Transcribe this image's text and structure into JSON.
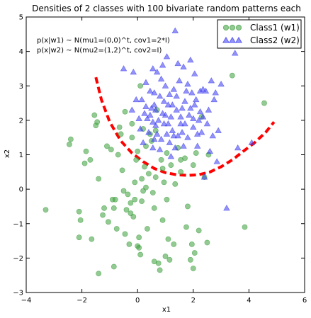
{
  "chart_data": {
    "type": "scatter",
    "title": "Densities of 2 classes with 100 bivariate random patterns each",
    "xlabel": "x1",
    "ylabel": "x2",
    "xlim": [
      -4,
      6
    ],
    "ylim": [
      -3,
      5
    ],
    "xticks": [
      -4,
      -2,
      0,
      2,
      4,
      6
    ],
    "yticks": [
      -3,
      -2,
      -1,
      0,
      1,
      2,
      3,
      4,
      5
    ],
    "grid": false,
    "legend_position": "top-right",
    "annotations": [
      "p(x|w1) ~ N(mu1=(0,0)^t, cov1=2*I)",
      "p(x|w2) ~ N(mu2=(1,2)^t, cov2=I)"
    ],
    "series": [
      {
        "name": "Class1 (w1)",
        "marker": "circle",
        "color": "#3a9e3a",
        "points": [
          [
            -3.3,
            -0.6
          ],
          [
            -2.45,
            1.3
          ],
          [
            -2.4,
            1.45
          ],
          [
            -2.1,
            -0.65
          ],
          [
            -2.1,
            -1.4
          ],
          [
            -2.05,
            -0.9
          ],
          [
            -1.9,
            0.75
          ],
          [
            -1.85,
            1.1
          ],
          [
            -1.7,
            0.85
          ],
          [
            -1.65,
            -1.45
          ],
          [
            -1.55,
            2.15
          ],
          [
            -1.5,
            1.85
          ],
          [
            -1.45,
            1.95
          ],
          [
            -1.4,
            -2.45
          ],
          [
            -1.4,
            0.3
          ],
          [
            -1.25,
            -0.75
          ],
          [
            -1.2,
            -0.55
          ],
          [
            -1.1,
            1.25
          ],
          [
            -1.05,
            -0.95
          ],
          [
            -0.95,
            1.15
          ],
          [
            -0.9,
            -0.3
          ],
          [
            -0.85,
            -2.25
          ],
          [
            -0.85,
            -0.55
          ],
          [
            -0.8,
            -0.3
          ],
          [
            -0.75,
            -1.15
          ],
          [
            -0.7,
            1.0
          ],
          [
            -0.65,
            1.8
          ],
          [
            -0.55,
            0.55
          ],
          [
            -0.5,
            -0.05
          ],
          [
            -0.45,
            -1.3
          ],
          [
            -0.45,
            2.25
          ],
          [
            -0.4,
            -0.6
          ],
          [
            -0.35,
            -0.15
          ],
          [
            -0.3,
            -1.6
          ],
          [
            -0.25,
            -0.4
          ],
          [
            -0.25,
            -0.7
          ],
          [
            -0.2,
            1.9
          ],
          [
            -0.2,
            1.5
          ],
          [
            -0.15,
            -0.8
          ],
          [
            -0.1,
            -0.3
          ],
          [
            -0.1,
            0.2
          ],
          [
            -0.05,
            0.85
          ],
          [
            0.0,
            1.1
          ],
          [
            0.0,
            -1.65
          ],
          [
            0.05,
            -1.7
          ],
          [
            0.05,
            -1.4
          ],
          [
            0.1,
            -1.9
          ],
          [
            0.1,
            3.0
          ],
          [
            0.15,
            0.3
          ],
          [
            0.15,
            -0.35
          ],
          [
            0.2,
            -0.05
          ],
          [
            0.2,
            1.75
          ],
          [
            0.25,
            0.65
          ],
          [
            0.3,
            0.05
          ],
          [
            0.3,
            1.25
          ],
          [
            0.35,
            -1.15
          ],
          [
            0.4,
            0.45
          ],
          [
            0.45,
            1.6
          ],
          [
            0.5,
            1.4
          ],
          [
            0.55,
            -0.1
          ],
          [
            0.6,
            -2.1
          ],
          [
            0.6,
            -0.55
          ],
          [
            0.65,
            0.35
          ],
          [
            0.7,
            2.3
          ],
          [
            0.75,
            -2.15
          ],
          [
            0.8,
            -2.35
          ],
          [
            0.85,
            0.85
          ],
          [
            0.9,
            -0.9
          ],
          [
            0.9,
            0.6
          ],
          [
            0.95,
            0.2
          ],
          [
            1.0,
            -1.95
          ],
          [
            1.05,
            -0.3
          ],
          [
            1.1,
            -1.45
          ],
          [
            1.15,
            -2.05
          ],
          [
            1.2,
            0.7
          ],
          [
            1.3,
            -1.6
          ],
          [
            1.35,
            0.15
          ],
          [
            1.45,
            1.2
          ],
          [
            1.55,
            0.5
          ],
          [
            1.7,
            0.9
          ],
          [
            1.75,
            -1.1
          ],
          [
            1.8,
            -0.5
          ],
          [
            1.9,
            -2.05
          ],
          [
            1.95,
            -1.6
          ],
          [
            2.0,
            -2.3
          ],
          [
            2.05,
            -1.85
          ],
          [
            2.1,
            1.05
          ],
          [
            2.2,
            -1.2
          ],
          [
            2.3,
            2.1
          ],
          [
            2.4,
            0.35
          ],
          [
            2.5,
            -1.55
          ],
          [
            2.55,
            1.0
          ],
          [
            2.0,
            0.7
          ],
          [
            3.4,
            3.3
          ],
          [
            3.85,
            -1.1
          ],
          [
            4.55,
            2.5
          ],
          [
            1.05,
            1.05
          ],
          [
            0.65,
            1.7
          ],
          [
            1.55,
            0.85
          ],
          [
            -0.6,
            1.6
          ]
        ]
      },
      {
        "name": "Class2 (w2)",
        "marker": "triangle",
        "color": "#3b3bf0",
        "points": [
          [
            -0.5,
            3.5
          ],
          [
            -0.2,
            2.3
          ],
          [
            -0.15,
            3.4
          ],
          [
            -0.05,
            2.6
          ],
          [
            0.05,
            2.05
          ],
          [
            0.1,
            1.75
          ],
          [
            0.15,
            2.6
          ],
          [
            0.2,
            1.35
          ],
          [
            0.25,
            2.2
          ],
          [
            0.3,
            3.1
          ],
          [
            0.35,
            2.05
          ],
          [
            0.4,
            1.65
          ],
          [
            0.45,
            2.85
          ],
          [
            0.5,
            2.35
          ],
          [
            0.55,
            3.5
          ],
          [
            0.55,
            1.2
          ],
          [
            0.6,
            2.45
          ],
          [
            0.6,
            2.8
          ],
          [
            0.65,
            1.85
          ],
          [
            0.65,
            2.3
          ],
          [
            0.7,
            3.4
          ],
          [
            0.7,
            1.6
          ],
          [
            0.75,
            2.0
          ],
          [
            0.8,
            2.7
          ],
          [
            0.85,
            1.45
          ],
          [
            0.9,
            2.2
          ],
          [
            0.95,
            1.9
          ],
          [
            1.0,
            3.0
          ],
          [
            1.05,
            3.85
          ],
          [
            1.1,
            2.45
          ],
          [
            1.15,
            1.35
          ],
          [
            1.2,
            2.1
          ],
          [
            1.25,
            1.7
          ],
          [
            1.3,
            2.9
          ],
          [
            1.35,
            1.2
          ],
          [
            1.4,
            2.3
          ],
          [
            1.45,
            1.55
          ],
          [
            1.5,
            3.15
          ],
          [
            1.55,
            1.9
          ],
          [
            1.6,
            2.35
          ],
          [
            1.65,
            3.55
          ],
          [
            1.7,
            2.55
          ],
          [
            1.75,
            2.85
          ],
          [
            1.8,
            1.5
          ],
          [
            1.85,
            2.15
          ],
          [
            1.9,
            3.75
          ],
          [
            1.95,
            2.8
          ],
          [
            2.0,
            1.8
          ],
          [
            2.05,
            2.45
          ],
          [
            2.1,
            2.6
          ],
          [
            2.15,
            1.25
          ],
          [
            2.2,
            2.0
          ],
          [
            2.25,
            2.85
          ],
          [
            2.3,
            1.65
          ],
          [
            2.35,
            2.9
          ],
          [
            2.4,
            0.35
          ],
          [
            2.45,
            2.85
          ],
          [
            2.5,
            1.9
          ],
          [
            2.55,
            2.3
          ],
          [
            2.6,
            1.1
          ],
          [
            2.65,
            3.15
          ],
          [
            2.7,
            1.55
          ],
          [
            2.75,
            2.6
          ],
          [
            2.8,
            2.8
          ],
          [
            2.85,
            0.8
          ],
          [
            2.9,
            1.7
          ],
          [
            3.0,
            3.05
          ],
          [
            3.2,
            -0.55
          ],
          [
            3.5,
            3.95
          ],
          [
            3.6,
            1.2
          ],
          [
            4.1,
            1.35
          ],
          [
            1.35,
            4.6
          ],
          [
            1.0,
            2.15
          ],
          [
            1.25,
            2.45
          ],
          [
            0.9,
            3.6
          ],
          [
            0.6,
            1.45
          ],
          [
            1.45,
            3.65
          ],
          [
            1.2,
            0.95
          ],
          [
            0.8,
            1.15
          ],
          [
            1.7,
            1.9
          ],
          [
            2.05,
            3.35
          ],
          [
            0.45,
            2.15
          ],
          [
            1.15,
            2.75
          ],
          [
            1.55,
            2.1
          ],
          [
            0.95,
            2.55
          ],
          [
            1.3,
            1.55
          ],
          [
            1.65,
            1.25
          ],
          [
            2.15,
            1.6
          ],
          [
            0.3,
            2.4
          ],
          [
            0.85,
            3.2
          ],
          [
            1.9,
            2.35
          ],
          [
            2.35,
            2.1
          ],
          [
            1.05,
            1.6
          ],
          [
            1.4,
            2.7
          ],
          [
            1.8,
            3.05
          ],
          [
            0.55,
            1.95
          ],
          [
            1.1,
            1.9
          ],
          [
            2.25,
            2.25
          ],
          [
            1.6,
            1.65
          ],
          [
            2.0,
            2.05
          ]
        ]
      }
    ],
    "decision_boundary": {
      "color": "#ff0000",
      "style": "dashed",
      "points": [
        [
          -1.5,
          3.25
        ],
        [
          -1.3,
          2.6
        ],
        [
          -1.0,
          1.95
        ],
        [
          -0.6,
          1.4
        ],
        [
          -0.2,
          1.05
        ],
        [
          0.2,
          0.8
        ],
        [
          0.6,
          0.6
        ],
        [
          1.0,
          0.48
        ],
        [
          1.4,
          0.42
        ],
        [
          1.8,
          0.4
        ],
        [
          2.2,
          0.42
        ],
        [
          2.6,
          0.5
        ],
        [
          3.0,
          0.65
        ],
        [
          3.4,
          0.85
        ],
        [
          3.8,
          1.1
        ],
        [
          4.2,
          1.35
        ],
        [
          4.6,
          1.65
        ],
        [
          4.9,
          1.95
        ]
      ]
    }
  }
}
